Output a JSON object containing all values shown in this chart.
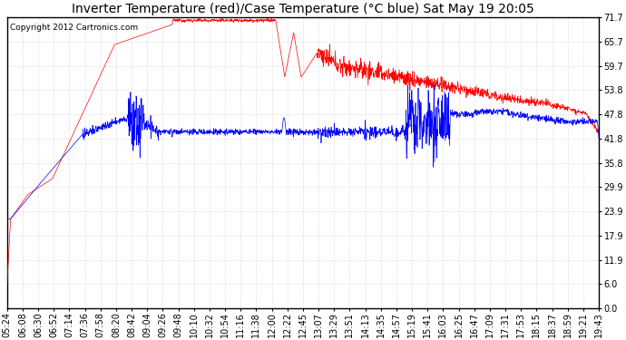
{
  "title": "Inverter Temperature (red)/Case Temperature (°C blue) Sat May 19 20:05",
  "copyright": "Copyright 2012 Cartronics.com",
  "yticks": [
    0.0,
    6.0,
    11.9,
    17.9,
    23.9,
    29.9,
    35.8,
    41.8,
    47.8,
    53.8,
    59.7,
    65.7,
    71.7
  ],
  "ylim": [
    0.0,
    71.7
  ],
  "background_color": "#ffffff",
  "plot_bg_color": "#ffffff",
  "grid_color": "#c8c8c8",
  "red_color": "#ff0000",
  "blue_color": "#0000ff",
  "title_fontsize": 10,
  "copyright_fontsize": 6.5,
  "tick_fontsize": 7
}
